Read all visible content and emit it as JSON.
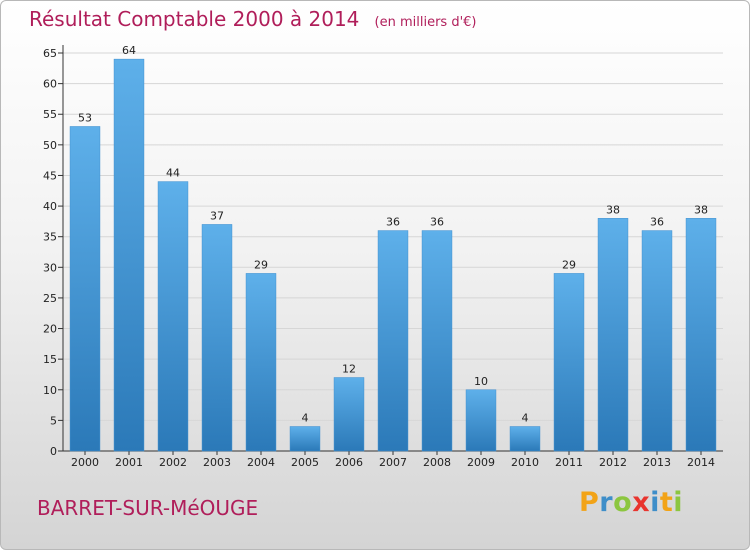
{
  "header": {
    "title": "Résultat Comptable 2000 à 2014",
    "subtitle": "(en milliers d'€)"
  },
  "footer": {
    "place": "BARRET-SUR-MéOUGE",
    "logo_letters": [
      "P",
      "r",
      "o",
      "x",
      "i",
      "t",
      "i"
    ],
    "logo_colors": [
      "#f2a317",
      "#3e8ec9",
      "#8cc63f",
      "#e8342e",
      "#3e8ec9",
      "#f2a317",
      "#8cc63f"
    ]
  },
  "colors": {
    "bar_light": "#5eb0ea",
    "bar_dark": "#2b79b8",
    "title": "#b01e5a",
    "grid": "#d6d6d6"
  },
  "chart_data": {
    "type": "bar",
    "title": "Résultat Comptable 2000 à 2014",
    "subtitle": "(en milliers d'€)",
    "categories": [
      "2000",
      "2001",
      "2002",
      "2003",
      "2004",
      "2005",
      "2006",
      "2007",
      "2008",
      "2009",
      "2010",
      "2011",
      "2012",
      "2013",
      "2014"
    ],
    "values": [
      53,
      64,
      44,
      37,
      29,
      4,
      12,
      36,
      36,
      10,
      4,
      29,
      38,
      36,
      38
    ],
    "ylim": [
      0,
      65
    ],
    "yticks": [
      0,
      5,
      10,
      15,
      20,
      25,
      30,
      35,
      40,
      45,
      50,
      55,
      60,
      65
    ],
    "grid": true,
    "legend": "none"
  }
}
